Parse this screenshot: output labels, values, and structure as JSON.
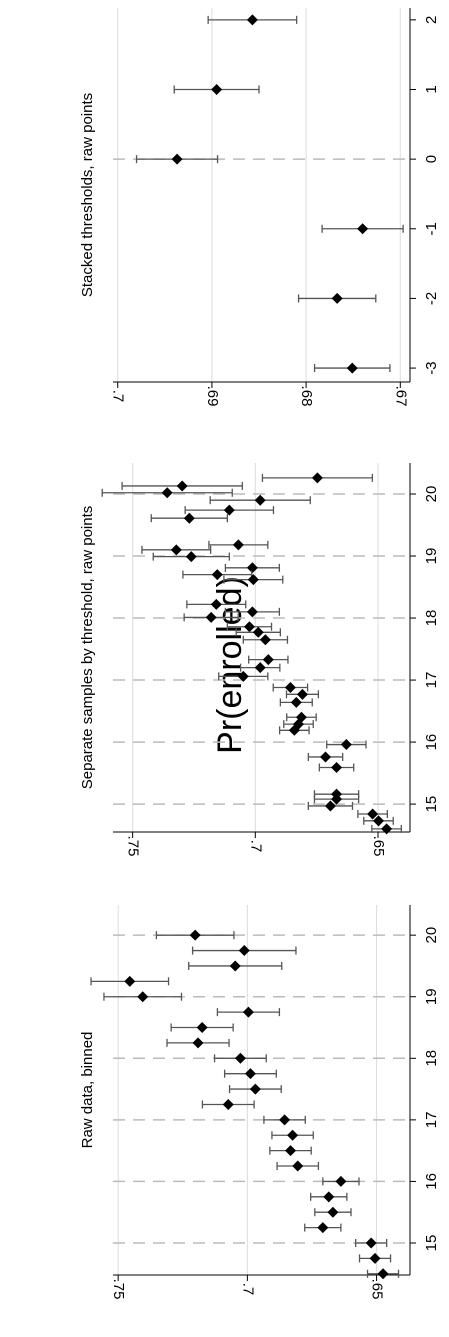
{
  "common_ylabel": "Pr(enrolled)",
  "chart_data": [
    {
      "type": "scatter",
      "title": "Stacked thresholds, raw points",
      "color": "#000000",
      "error_color": "#555555",
      "x": [
        2,
        1,
        0,
        -1,
        -2,
        -3
      ],
      "values": [
        0.6857,
        0.6895,
        0.6937,
        0.674,
        0.6767,
        0.6751
      ],
      "errors": [
        0.0047,
        0.0045,
        0.0043,
        0.0043,
        0.0041,
        0.004
      ],
      "xlim": [
        -3.2,
        2.17
      ],
      "xticks": [
        -3,
        -2,
        -1,
        0,
        1,
        2
      ],
      "ylim": [
        0.7005,
        0.6695
      ],
      "yticks": [
        {
          "value": 0.7,
          "label": ".7"
        },
        {
          "value": 0.69,
          "label": ".69"
        },
        {
          "value": 0.68,
          "label": ".68"
        },
        {
          "value": 0.67,
          "label": ".67"
        }
      ],
      "grid": true,
      "xgrid": false,
      "reference_x": 0
    },
    {
      "type": "scatter",
      "title": "Separate samples by threshold, raw points",
      "color": "#000000",
      "error_color": "#555555",
      "x": [
        20.26,
        20.13,
        20.02,
        19.9,
        19.74,
        19.61,
        19.18,
        19.1,
        18.99,
        18.81,
        18.7,
        18.62,
        18.22,
        18.1,
        18.01,
        17.86,
        17.77,
        17.65,
        17.33,
        17.2,
        17.06,
        16.88,
        16.77,
        16.64,
        16.4,
        16.29,
        16.19,
        15.96,
        15.76,
        15.59,
        15.16,
        15.08,
        14.97,
        14.84,
        14.73,
        14.6
      ],
      "values": [
        0.6747,
        0.7298,
        0.7359,
        0.698,
        0.7106,
        0.7269,
        0.7069,
        0.7322,
        0.7261,
        0.7012,
        0.7155,
        0.7008,
        0.7159,
        0.7012,
        0.718,
        0.7024,
        0.6988,
        0.6959,
        0.6947,
        0.698,
        0.7049,
        0.6857,
        0.6808,
        0.6833,
        0.6812,
        0.6824,
        0.6841,
        0.6629,
        0.6714,
        0.6669,
        0.6669,
        0.6669,
        0.6694,
        0.6522,
        0.6498,
        0.6465
      ],
      "errors": [
        0.0224,
        0.0245,
        0.0265,
        0.0204,
        0.018,
        0.0155,
        0.012,
        0.014,
        0.0155,
        0.011,
        0.014,
        0.012,
        0.012,
        0.011,
        0.011,
        0.009,
        0.009,
        0.009,
        0.008,
        0.008,
        0.01,
        0.007,
        0.0065,
        0.0065,
        0.006,
        0.006,
        0.006,
        0.008,
        0.007,
        0.007,
        0.009,
        0.009,
        0.009,
        0.006,
        0.006,
        0.006
      ],
      "xlim": [
        14.55,
        20.5
      ],
      "xticks": [
        15,
        16,
        17,
        18,
        19,
        20
      ],
      "ylim": [
        0.758,
        0.639
      ],
      "yticks": [
        {
          "value": 0.75,
          "label": ".75"
        },
        {
          "value": 0.7,
          "label": ".7"
        },
        {
          "value": 0.65,
          "label": ".65"
        }
      ],
      "grid": true,
      "xgrid": true
    },
    {
      "type": "scatter",
      "title": "Raw data, binned",
      "color": "#000000",
      "error_color": "#555555",
      "x": [
        14.5,
        14.75,
        15,
        15.25,
        15.5,
        15.75,
        16,
        16.25,
        16.5,
        16.75,
        17,
        17.25,
        17.5,
        17.75,
        18,
        18.25,
        18.5,
        18.75,
        19,
        19.25,
        19.5,
        19.75,
        20
      ],
      "values": [
        0.6475,
        0.6506,
        0.6521,
        0.6708,
        0.6669,
        0.6685,
        0.6638,
        0.6805,
        0.6833,
        0.6825,
        0.6856,
        0.7074,
        0.6969,
        0.6988,
        0.7027,
        0.7191,
        0.7175,
        0.6996,
        0.7405,
        0.7455,
        0.7047,
        0.7012,
        0.7202
      ],
      "errors": [
        0.006,
        0.006,
        0.006,
        0.007,
        0.007,
        0.007,
        0.007,
        0.008,
        0.008,
        0.008,
        0.008,
        0.01,
        0.01,
        0.01,
        0.01,
        0.012,
        0.012,
        0.012,
        0.015,
        0.015,
        0.018,
        0.02,
        0.015
      ],
      "xlim": [
        14.48,
        20.49
      ],
      "xticks": [
        15,
        16,
        17,
        18,
        19,
        20
      ],
      "ylim": [
        0.752,
        0.639
      ],
      "yticks": [
        {
          "value": 0.75,
          "label": ".75"
        },
        {
          "value": 0.7,
          "label": ".7"
        },
        {
          "value": 0.65,
          "label": ".65"
        }
      ],
      "grid": true,
      "xgrid": true
    }
  ]
}
